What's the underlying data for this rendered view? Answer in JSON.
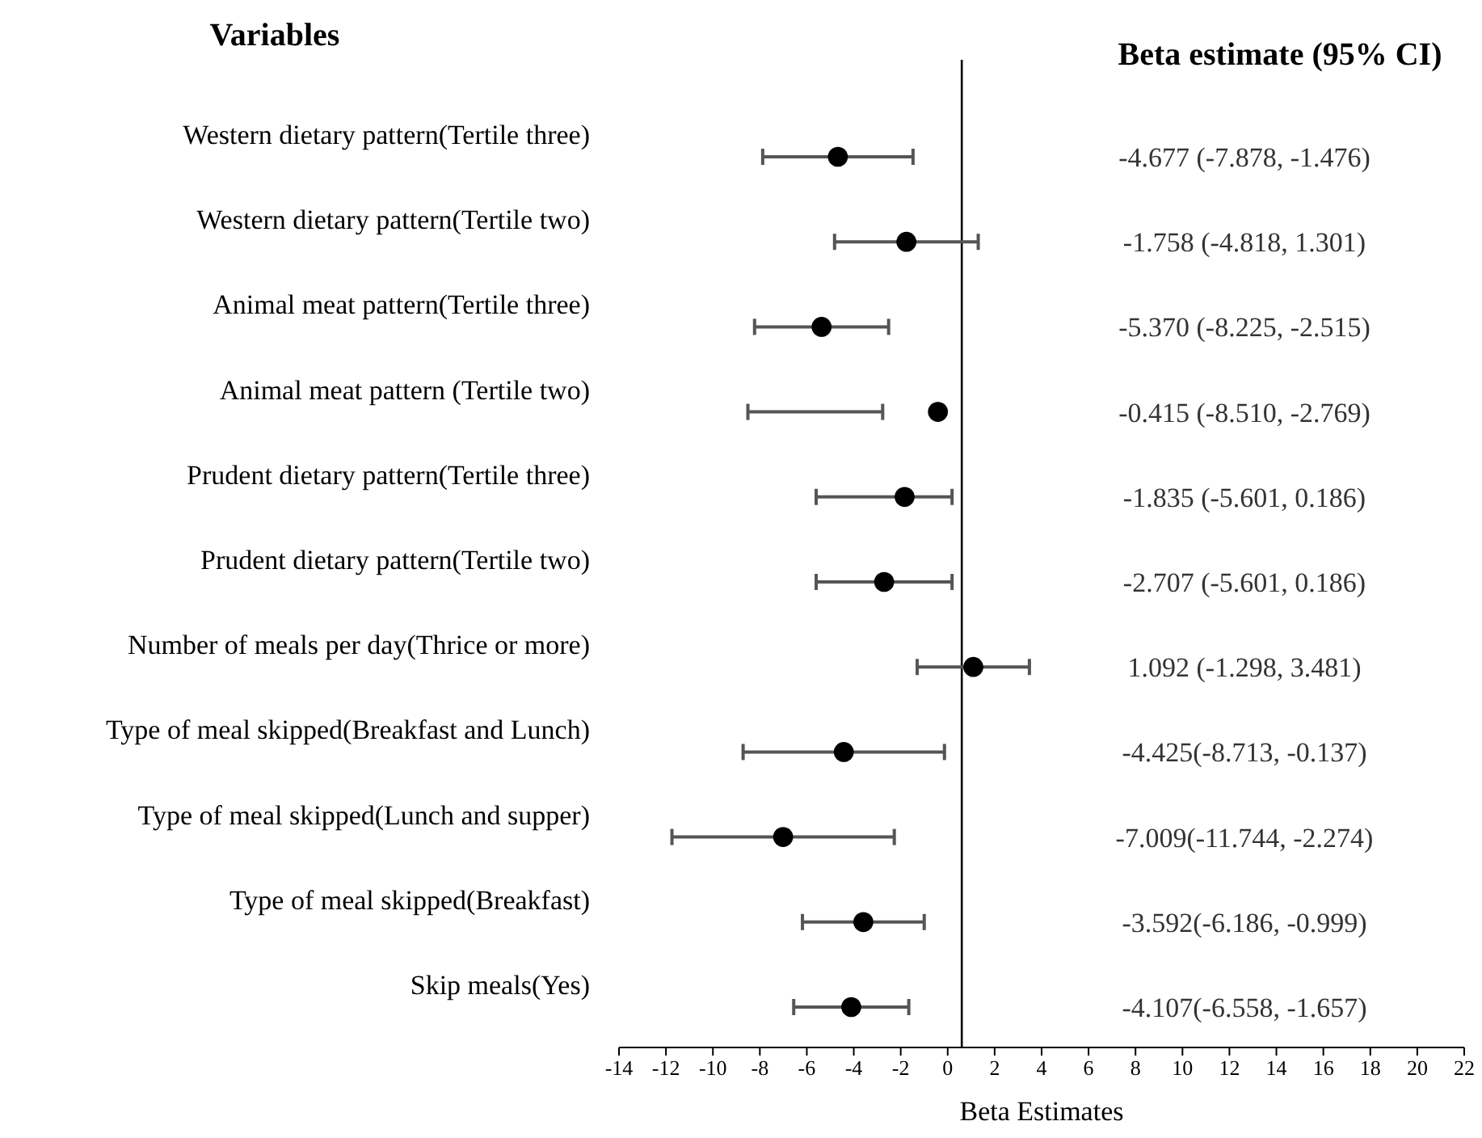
{
  "chart_data": {
    "type": "scatter",
    "orientation": "horizontal",
    "xlabel": "Beta Estimates",
    "categories": [
      "Western dietary pattern(Tertile three)",
      "Western dietary pattern(Tertile two)",
      "Animal meat pattern(Tertile three)",
      "Animal meat pattern (Tertile two)",
      "Prudent dietary pattern(Tertile three)",
      "Prudent dietary pattern(Tertile two)",
      "Number of meals per day(Thrice or more)",
      "Type of meal skipped(Breakfast and Lunch)",
      "Type of meal skipped(Lunch and supper)",
      "Type of meal skipped(Breakfast)",
      "Skip meals(Yes)"
    ],
    "series": [
      {
        "color": "#000000",
        "values": [
          -4.677,
          -1.758,
          -5.37,
          -0.415,
          -1.835,
          -2.707,
          1.092,
          -4.425,
          -7.009,
          -3.592,
          -4.107
        ],
        "errors": [
          [
            -7.878,
            -1.476
          ],
          [
            -4.818,
            1.301
          ],
          [
            -8.225,
            -2.515
          ],
          [
            -8.51,
            -2.769
          ],
          [
            -5.601,
            0.186
          ],
          [
            -5.601,
            0.186
          ],
          [
            -1.298,
            3.481
          ],
          [
            -8.713,
            -0.137
          ],
          [
            -11.744,
            -2.274
          ],
          [
            -6.186,
            -0.999
          ],
          [
            -6.558,
            -1.657
          ]
        ]
      }
    ],
    "xlim": [
      -14,
      22
    ],
    "xticks": [
      -14,
      -12,
      -10,
      -8,
      -6,
      -4,
      -2,
      0,
      2,
      4,
      6,
      8,
      10,
      12,
      14,
      16,
      18,
      20,
      22
    ],
    "ref_lines": [
      {
        "axis": "x",
        "value": 0.6,
        "color": "#000000"
      }
    ],
    "marker": "circle",
    "grid": false,
    "annotations": [
      "Variables",
      "Beta estimate (95% CI)",
      "-4.677 (-7.878, -1.476)",
      "-1.758 (-4.818, 1.301)",
      "-5.370 (-8.225, -2.515)",
      "-0.415 (-8.510, -2.769)",
      "-1.835 (-5.601, 0.186)",
      "-2.707 (-5.601, 0.186)",
      "1.092 (-1.298, 3.481)",
      "-4.425(-8.713, -0.137)",
      "-7.009(-11.744, -2.274)",
      "-3.592(-6.186, -0.999)",
      "-4.107(-6.558, -1.657)"
    ]
  }
}
